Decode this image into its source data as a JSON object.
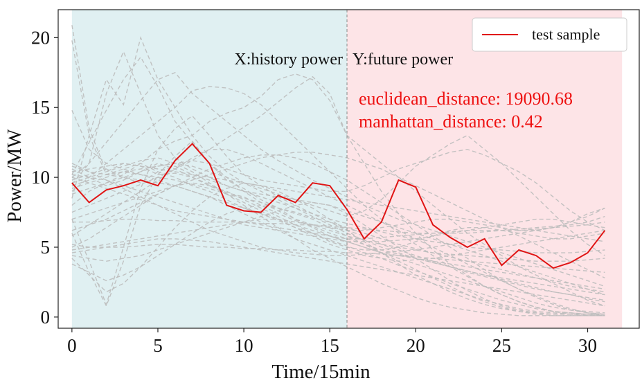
{
  "chart_data": {
    "type": "line",
    "xlabel": "Time/15min",
    "ylabel": "Power/MW",
    "xlim": [
      -0.8,
      33.0
    ],
    "ylim": [
      -0.8,
      22.0
    ],
    "x_ticks": [
      0,
      5,
      10,
      15,
      20,
      25,
      30
    ],
    "y_ticks": [
      0,
      5,
      10,
      15,
      20
    ],
    "grid": false,
    "legend_position": "top-right",
    "regions": [
      {
        "label": "X:history power",
        "x_start": 0,
        "x_end": 16,
        "color": "#e0f0f2"
      },
      {
        "label": "Y:future power",
        "x_start": 16,
        "x_end": 32,
        "color": "#fde4e7"
      }
    ],
    "divider_x": 16,
    "annotations": [
      "euclidean_distance: 19090.68",
      "manhattan_distance: 0.42"
    ],
    "colors": {
      "test": "#e01414",
      "background_series": "#bdbdbd",
      "annotation": "#ee1111",
      "divider": "#999999"
    },
    "series": [
      {
        "name": "test sample",
        "x": [
          0,
          1,
          2,
          3,
          4,
          5,
          6,
          7,
          8,
          9,
          10,
          11,
          12,
          13,
          14,
          15,
          16,
          17,
          18,
          19,
          20,
          21,
          22,
          23,
          24,
          25,
          26,
          27,
          28,
          29,
          30,
          31
        ],
        "values": [
          9.6,
          8.2,
          9.1,
          9.4,
          9.8,
          9.4,
          11.2,
          12.4,
          11.0,
          8.0,
          7.6,
          7.5,
          8.7,
          8.2,
          9.6,
          9.4,
          7.7,
          5.6,
          6.8,
          9.8,
          9.3,
          6.6,
          5.7,
          5.0,
          5.6,
          3.7,
          4.8,
          4.4,
          3.5,
          3.9,
          4.6,
          6.2
        ]
      }
    ],
    "background_series": [
      [
        20.9,
        13.5,
        10.4,
        11.0,
        10.8,
        10.2,
        10.3,
        10.0,
        9.5,
        8.9,
        8.6,
        8.0,
        7.4,
        6.9,
        6.5,
        6.0,
        5.6,
        5.2,
        4.8,
        4.5,
        4.2,
        3.9,
        3.6,
        3.3,
        3.0,
        2.7,
        2.4,
        2.1,
        1.8,
        1.6,
        1.3,
        1.1
      ],
      [
        19.8,
        13.0,
        10.2,
        10.6,
        11.0,
        10.4,
        10.0,
        9.4,
        9.0,
        8.4,
        7.8,
        7.4,
        6.9,
        6.4,
        6.0,
        5.5,
        5.1,
        4.6,
        4.2,
        3.7,
        3.3,
        2.9,
        2.4,
        2.0,
        1.6,
        1.2,
        0.9,
        0.6,
        0.4,
        0.3,
        0.2,
        0.1
      ],
      [
        14.8,
        12.0,
        11.0,
        10.6,
        10.2,
        10.0,
        9.8,
        9.5,
        9.2,
        8.8,
        8.5,
        8.2,
        7.8,
        7.5,
        7.1,
        6.8,
        6.4,
        6.0,
        5.6,
        5.2,
        4.9,
        4.6,
        4.3,
        4.0,
        3.7,
        3.4,
        3.1,
        2.8,
        2.5,
        2.2,
        2.0,
        1.8
      ],
      [
        6.0,
        3.2,
        0.8,
        4.0,
        8.0,
        10.2,
        11.5,
        12.6,
        11.0,
        9.8,
        9.2,
        8.4,
        7.8,
        7.0,
        6.4,
        5.8,
        5.4,
        5.0,
        4.6,
        4.4,
        4.2,
        4.0,
        3.8,
        3.6,
        3.4,
        3.2,
        3.0,
        2.8,
        2.6,
        2.4,
        2.2,
        2.0
      ],
      [
        7.0,
        4.0,
        0.9,
        5.0,
        9.2,
        12.0,
        13.5,
        14.4,
        13.0,
        11.5,
        10.2,
        9.4,
        8.6,
        8.0,
        7.4,
        6.8,
        6.2,
        5.8,
        5.2,
        4.8,
        4.4,
        4.0,
        3.6,
        3.2,
        2.9,
        2.6,
        2.3,
        2.0,
        1.8,
        1.6,
        1.4,
        1.2
      ],
      [
        10.2,
        12.5,
        14.8,
        17.0,
        18.6,
        16.5,
        14.0,
        12.5,
        11.0,
        10.0,
        9.0,
        8.2,
        7.6,
        7.0,
        6.6,
        6.2,
        5.8,
        5.5,
        5.2,
        5.0,
        4.8,
        4.6,
        4.5,
        4.4,
        4.3,
        4.2,
        4.1,
        4.0,
        4.0,
        4.0,
        4.1,
        4.2
      ],
      [
        9.5,
        11.0,
        16.0,
        19.0,
        16.0,
        13.0,
        11.4,
        10.6,
        10.0,
        9.4,
        9.0,
        8.6,
        8.2,
        7.8,
        7.4,
        7.0,
        6.7,
        6.4,
        6.1,
        5.8,
        5.6,
        5.4,
        5.2,
        5.0,
        4.9,
        4.8,
        4.7,
        4.6,
        4.6,
        4.6,
        4.7,
        4.8
      ],
      [
        8.5,
        13.0,
        17.0,
        15.2,
        20.0,
        17.0,
        15.0,
        13.0,
        11.5,
        10.4,
        9.6,
        9.0,
        8.4,
        7.8,
        7.2,
        6.6,
        6.0,
        5.5,
        5.0,
        4.6,
        4.2,
        3.9,
        3.6,
        3.3,
        3.0,
        2.8,
        2.6,
        2.4,
        2.2,
        2.0,
        1.8,
        1.6
      ],
      [
        10.0,
        11.0,
        12.5,
        14.0,
        15.5,
        17.0,
        17.5,
        16.0,
        15.0,
        14.0,
        13.0,
        12.0,
        11.2,
        10.5,
        9.8,
        9.2,
        8.6,
        8.0,
        7.5,
        7.0,
        6.6,
        6.2,
        5.8,
        5.4,
        5.0,
        4.6,
        4.2,
        3.8,
        3.4,
        3.0,
        2.6,
        2.2
      ],
      [
        9.0,
        10.0,
        11.0,
        12.0,
        13.0,
        14.0,
        15.0,
        16.2,
        16.5,
        16.4,
        16.0,
        15.2,
        14.0,
        12.8,
        11.6,
        10.4,
        9.2,
        8.0,
        7.0,
        6.0,
        5.2,
        4.4,
        3.6,
        2.9,
        2.2,
        1.6,
        1.1,
        0.7,
        0.4,
        0.2,
        0.1,
        0.1
      ],
      [
        8.0,
        9.0,
        9.6,
        10.2,
        11.0,
        12.0,
        12.6,
        13.0,
        14.0,
        14.6,
        15.0,
        15.8,
        17.0,
        17.4,
        17.0,
        15.5,
        13.0,
        11.0,
        9.0,
        7.4,
        6.0,
        4.8,
        3.8,
        3.0,
        2.2,
        1.6,
        1.1,
        0.7,
        0.4,
        0.3,
        0.2,
        0.1
      ],
      [
        7.5,
        8.0,
        8.5,
        9.0,
        9.5,
        10.0,
        10.6,
        11.2,
        12.0,
        12.8,
        13.6,
        14.4,
        15.4,
        16.4,
        17.2,
        16.0,
        13.0,
        12.0,
        11.0,
        10.0,
        9.0,
        8.0,
        7.0,
        6.0,
        5.2,
        4.4,
        3.6,
        3.0,
        2.4,
        1.8,
        1.2,
        0.8
      ],
      [
        10.4,
        10.6,
        10.8,
        11.0,
        10.8,
        10.6,
        10.4,
        10.2,
        10.0,
        9.8,
        9.6,
        9.4,
        9.2,
        9.0,
        8.8,
        8.6,
        8.4,
        8.2,
        8.0,
        7.8,
        7.6,
        7.4,
        7.2,
        7.0,
        6.8,
        6.6,
        6.4,
        6.2,
        6.0,
        5.8,
        5.6,
        5.4
      ],
      [
        9.8,
        10.2,
        10.6,
        10.0,
        9.6,
        10.4,
        10.8,
        10.2,
        9.8,
        9.4,
        9.0,
        8.8,
        8.6,
        8.4,
        8.2,
        8.0,
        7.6,
        7.2,
        6.8,
        6.4,
        6.0,
        5.6,
        5.2,
        4.8,
        4.4,
        4.0,
        3.6,
        3.2,
        2.8,
        2.4,
        2.0,
        1.6
      ],
      [
        10.6,
        10.0,
        9.4,
        9.8,
        10.4,
        11.0,
        10.6,
        10.0,
        9.4,
        8.8,
        8.2,
        7.6,
        7.0,
        6.4,
        5.8,
        5.2,
        4.8,
        4.4,
        4.2,
        4.0,
        4.1,
        4.2,
        4.4,
        4.6,
        4.8,
        5.0,
        5.2,
        5.4,
        5.6,
        5.8,
        6.0,
        6.2
      ],
      [
        10.0,
        9.6,
        9.2,
        8.8,
        8.4,
        8.0,
        7.6,
        7.4,
        7.2,
        7.0,
        6.8,
        6.6,
        6.4,
        6.2,
        6.0,
        5.8,
        5.6,
        5.6,
        5.7,
        5.8,
        5.9,
        6.0,
        6.1,
        6.2,
        6.2,
        6.2,
        6.3,
        6.4,
        6.5,
        6.6,
        6.8,
        7.2
      ],
      [
        11.0,
        10.4,
        9.8,
        9.2,
        8.6,
        8.0,
        7.4,
        6.8,
        6.2,
        5.8,
        5.4,
        5.0,
        4.8,
        4.6,
        4.5,
        4.4,
        4.4,
        4.5,
        4.6,
        4.7,
        4.8,
        5.0,
        5.2,
        5.4,
        5.6,
        5.8,
        6.0,
        6.2,
        6.4,
        6.8,
        7.2,
        7.8
      ],
      [
        6.8,
        6.8,
        6.9,
        7.0,
        7.0,
        6.9,
        6.9,
        6.8,
        6.8,
        6.8,
        6.8,
        6.7,
        6.7,
        6.6,
        6.6,
        6.5,
        6.4,
        6.3,
        6.2,
        6.1,
        6.0,
        6.0,
        6.0,
        6.0,
        6.1,
        6.2,
        6.2,
        6.3,
        6.4,
        6.5,
        6.6,
        6.8
      ],
      [
        5.2,
        5.0,
        5.0,
        5.0,
        5.1,
        5.2,
        5.2,
        5.1,
        5.0,
        5.0,
        4.9,
        4.9,
        4.8,
        4.8,
        4.7,
        4.7,
        4.6,
        4.6,
        4.5,
        4.4,
        4.3,
        4.2,
        4.1,
        4.0,
        3.9,
        3.8,
        3.7,
        3.6,
        3.5,
        3.4,
        3.3,
        3.2
      ],
      [
        4.6,
        4.8,
        5.0,
        5.2,
        5.4,
        5.6,
        5.6,
        5.5,
        5.4,
        5.2,
        5.0,
        4.8,
        4.6,
        4.4,
        4.2,
        4.0,
        3.8,
        3.6,
        3.4,
        3.2,
        3.0,
        2.8,
        2.6,
        2.4,
        2.2,
        2.0,
        1.8,
        1.6,
        1.4,
        1.2,
        1.0,
        0.8
      ],
      [
        3.8,
        3.2,
        2.6,
        3.0,
        3.6,
        4.4,
        5.2,
        6.0,
        6.8,
        7.4,
        7.8,
        8.0,
        7.8,
        7.4,
        7.0,
        6.4,
        5.8,
        5.2,
        4.6,
        4.0,
        3.4,
        2.8,
        2.2,
        1.6,
        1.1,
        0.7,
        0.4,
        0.2,
        0.1,
        0.1,
        0.1,
        0.1
      ],
      [
        4.2,
        3.0,
        1.8,
        2.4,
        3.6,
        5.0,
        6.4,
        7.6,
        8.6,
        9.2,
        9.6,
        9.4,
        9.0,
        8.4,
        7.8,
        7.0,
        6.2,
        5.4,
        4.6,
        3.8,
        3.0,
        2.4,
        1.8,
        1.3,
        0.9,
        0.6,
        0.4,
        0.3,
        0.2,
        0.2,
        0.2,
        0.2
      ],
      [
        5.8,
        6.6,
        7.4,
        8.2,
        9.0,
        9.8,
        10.6,
        11.4,
        12.0,
        12.0,
        11.6,
        11.0,
        10.4,
        9.8,
        9.2,
        8.6,
        8.0,
        7.4,
        6.8,
        6.2,
        5.6,
        5.0,
        4.4,
        3.8,
        3.2,
        2.6,
        2.0,
        1.5,
        1.0,
        0.6,
        0.3,
        0.2
      ],
      [
        8.8,
        9.2,
        9.6,
        10.0,
        10.4,
        10.8,
        11.0,
        10.8,
        10.4,
        10.0,
        9.6,
        9.2,
        8.8,
        8.4,
        8.0,
        7.6,
        7.2,
        7.6,
        8.4,
        9.6,
        10.8,
        11.6,
        12.4,
        13.0,
        12.0,
        11.0,
        9.8,
        8.6,
        7.4,
        6.2,
        5.2,
        4.4
      ],
      [
        9.2,
        9.6,
        10.0,
        10.4,
        10.6,
        10.8,
        11.0,
        11.2,
        11.0,
        10.6,
        10.2,
        9.8,
        9.6,
        9.4,
        9.2,
        9.0,
        9.0,
        9.4,
        10.0,
        10.6,
        11.0,
        11.4,
        11.8,
        12.0,
        11.6,
        11.0,
        10.4,
        9.6,
        8.6,
        7.6,
        6.8,
        6.2
      ],
      [
        7.0,
        7.4,
        7.8,
        8.2,
        8.6,
        9.0,
        9.4,
        9.8,
        10.2,
        10.6,
        11.0,
        11.4,
        11.6,
        11.8,
        11.8,
        11.6,
        11.4,
        11.0,
        10.6,
        10.0,
        9.4,
        8.8,
        8.2,
        7.6,
        7.0,
        6.4,
        5.8,
        5.2,
        4.6,
        4.0,
        3.4,
        2.8
      ],
      [
        6.2,
        6.6,
        7.0,
        7.6,
        8.2,
        8.8,
        9.4,
        10.0,
        10.6,
        11.0,
        11.4,
        11.6,
        11.6,
        11.4,
        11.0,
        10.4,
        9.8,
        9.0,
        8.2,
        7.4,
        6.6,
        5.8,
        5.0,
        4.2,
        3.4,
        2.6,
        2.0,
        1.4,
        0.9,
        0.5,
        0.3,
        0.2
      ],
      [
        10.8,
        10.4,
        10.2,
        10.0,
        9.8,
        9.6,
        9.4,
        9.0,
        8.6,
        8.0,
        7.4,
        6.8,
        6.2,
        5.6,
        5.2,
        4.8,
        4.4,
        4.0,
        3.6,
        3.2,
        2.8,
        2.4,
        2.0,
        1.6,
        1.2,
        0.9,
        0.6,
        0.4,
        0.3,
        0.2,
        0.2,
        0.2
      ],
      [
        9.4,
        9.8,
        10.2,
        10.4,
        10.2,
        9.8,
        9.4,
        9.0,
        8.6,
        8.2,
        7.8,
        7.4,
        7.0,
        6.6,
        6.2,
        5.8,
        5.4,
        5.0,
        4.6,
        4.2,
        3.8,
        3.4,
        3.0,
        2.6,
        2.2,
        1.8,
        1.4,
        1.0,
        0.7,
        0.5,
        0.4,
        0.3
      ],
      [
        5.0,
        5.6,
        6.4,
        7.2,
        8.0,
        8.8,
        9.4,
        9.6,
        9.4,
        9.0,
        8.4,
        7.8,
        7.2,
        6.6,
        6.0,
        5.4,
        5.0,
        4.8,
        4.8,
        5.0,
        5.4,
        5.8,
        6.2,
        6.4,
        6.4,
        6.2,
        6.0,
        5.8,
        5.6,
        5.6,
        5.8,
        6.0
      ],
      [
        4.8,
        5.0,
        5.2,
        5.4,
        5.6,
        5.8,
        6.0,
        6.2,
        6.4,
        6.6,
        6.8,
        7.0,
        7.0,
        6.8,
        6.6,
        6.4,
        6.2,
        6.2,
        6.4,
        6.6,
        6.8,
        7.0,
        7.0,
        6.8,
        6.6,
        6.4,
        6.2,
        6.2,
        6.4,
        6.8,
        7.4,
        7.8
      ],
      [
        10.2,
        10.0,
        9.8,
        9.4,
        9.0,
        8.6,
        8.2,
        7.8,
        7.4,
        7.0,
        6.6,
        6.4,
        6.2,
        6.0,
        5.8,
        5.6,
        5.4,
        5.4,
        5.4,
        5.5,
        5.6,
        5.8,
        6.0,
        6.2,
        6.4,
        6.6,
        6.8,
        7.0,
        7.0,
        6.8,
        6.6,
        6.4
      ],
      [
        4.4,
        4.2,
        4.0,
        4.2,
        4.4,
        4.8,
        5.2,
        5.6,
        6.0,
        6.4,
        6.8,
        7.2,
        7.6,
        8.0,
        8.2,
        8.0,
        7.4,
        6.6,
        5.8,
        5.0,
        4.2,
        3.4,
        2.6,
        1.9,
        1.3,
        0.8,
        0.5,
        0.3,
        0.2,
        0.2,
        0.2,
        0.2
      ],
      [
        9.6,
        10.0,
        10.4,
        10.8,
        11.2,
        11.4,
        11.0,
        10.4,
        9.6,
        8.8,
        8.0,
        7.2,
        6.4,
        5.6,
        4.8,
        4.2,
        3.6,
        3.0,
        2.4,
        1.9,
        1.4,
        1.0,
        0.7,
        0.5,
        0.3,
        0.2,
        0.1,
        0.1,
        0.1,
        0.1,
        0.1,
        0.1
      ]
    ]
  }
}
